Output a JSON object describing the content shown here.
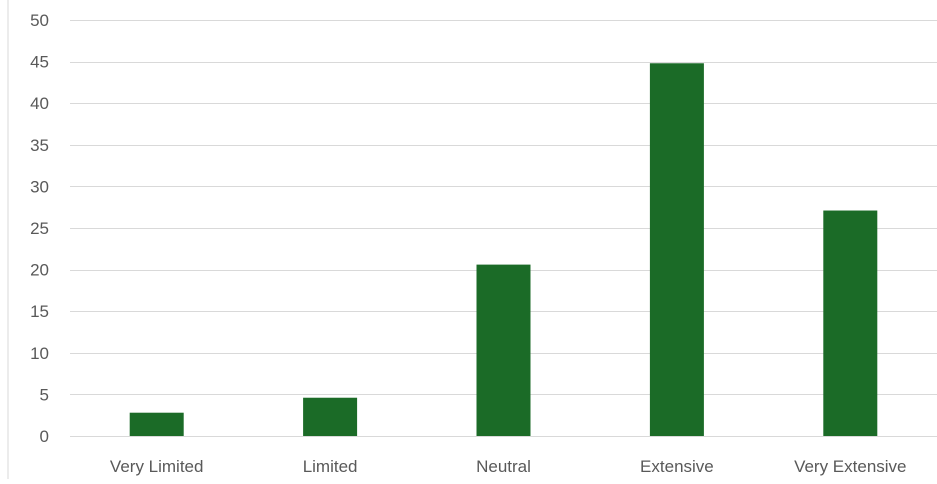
{
  "chart_data": {
    "type": "bar",
    "title": "",
    "xlabel": "",
    "ylabel": "",
    "categories": [
      "Very Limited",
      "Limited",
      "Neutral",
      "Extensive",
      "Very Extensive"
    ],
    "values": [
      2.8,
      4.6,
      20.6,
      44.8,
      27.1
    ],
    "ylim": [
      0,
      50
    ],
    "yticks": [
      0,
      5,
      10,
      15,
      20,
      25,
      30,
      35,
      40,
      45,
      50
    ],
    "grid": true,
    "legend": "none",
    "bar_color": "#1b6b27",
    "grid_color": "#d9d9d9",
    "text_color": "#595959"
  }
}
